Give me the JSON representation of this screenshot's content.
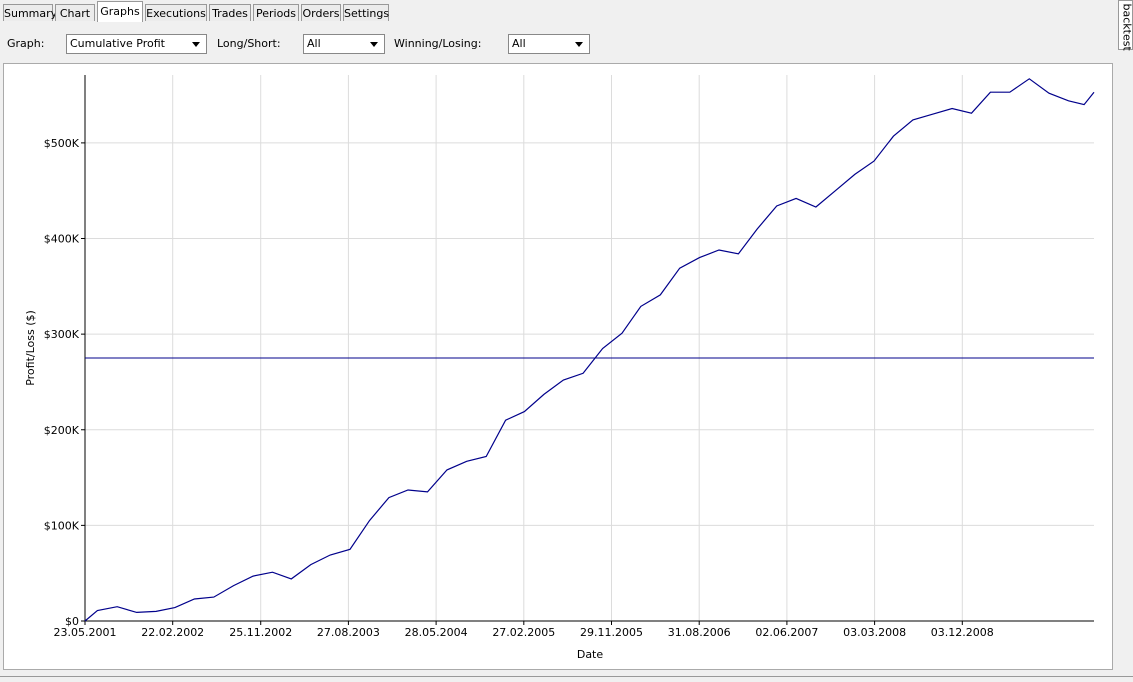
{
  "tabs": [
    "Summary",
    "Chart",
    "Graphs",
    "Executions",
    "Trades",
    "Periods",
    "Orders",
    "Settings"
  ],
  "active_tab": "Graphs",
  "side_tab": "backtest",
  "filters": [
    {
      "label": "Graph:",
      "value": "Cumulative Profit"
    },
    {
      "label": "Long/Short:",
      "value": "All"
    },
    {
      "label": "Winning/Losing:",
      "value": "All"
    }
  ],
  "chart_data": {
    "type": "line",
    "x_label": "Date",
    "y_label": "Profit/Loss ($)",
    "x": [
      "2001-05-23",
      "2001-07-01",
      "2001-09-01",
      "2001-11-01",
      "2002-01-01",
      "2002-03-01",
      "2002-05-01",
      "2002-07-01",
      "2002-09-01",
      "2002-11-01",
      "2003-01-01",
      "2003-03-01",
      "2003-05-01",
      "2003-07-01",
      "2003-09-01",
      "2003-11-01",
      "2004-01-01",
      "2004-03-01",
      "2004-05-01",
      "2004-07-01",
      "2004-09-01",
      "2004-11-01",
      "2005-01-01",
      "2005-03-01",
      "2005-05-01",
      "2005-07-01",
      "2005-09-01",
      "2005-11-01",
      "2006-01-01",
      "2006-03-01",
      "2006-05-01",
      "2006-07-01",
      "2006-09-01",
      "2006-11-01",
      "2007-01-01",
      "2007-03-01",
      "2007-05-01",
      "2007-07-01",
      "2007-09-01",
      "2007-11-01",
      "2008-01-01",
      "2008-03-01",
      "2008-05-01",
      "2008-07-01",
      "2008-09-01",
      "2008-11-01",
      "2009-01-01",
      "2009-03-01",
      "2009-05-01",
      "2009-07-01",
      "2009-09-01",
      "2009-11-01",
      "2009-12-20",
      "2010-01-20"
    ],
    "series": [
      {
        "color": "#00008b",
        "values": [
          0,
          11000,
          15000,
          9000,
          10000,
          14000,
          23000,
          25000,
          37000,
          47000,
          51000,
          44000,
          59000,
          69000,
          75000,
          105000,
          129000,
          137000,
          135000,
          158000,
          167000,
          172000,
          210000,
          219000,
          237000,
          252000,
          259000,
          285000,
          301000,
          329000,
          341000,
          369000,
          380000,
          388000,
          384000,
          410000,
          434000,
          442000,
          433000,
          450000,
          467000,
          481000,
          507000,
          524000,
          530000,
          536000,
          531000,
          553000,
          553000,
          567000,
          552000,
          544000,
          540000,
          553000
        ]
      }
    ],
    "reference_line": 275000,
    "xlim": [
      "2001-05-23",
      "2010-01-20"
    ],
    "xticks": [
      {
        "value": "2001-05-23",
        "label": "23.05.2001"
      },
      {
        "value": "2002-02-22",
        "label": "22.02.2002"
      },
      {
        "value": "2002-11-25",
        "label": "25.11.2002"
      },
      {
        "value": "2003-08-27",
        "label": "27.08.2003"
      },
      {
        "value": "2004-05-28",
        "label": "28.05.2004"
      },
      {
        "value": "2005-02-27",
        "label": "27.02.2005"
      },
      {
        "value": "2005-11-29",
        "label": "29.11.2005"
      },
      {
        "value": "2006-08-31",
        "label": "31.08.2006"
      },
      {
        "value": "2007-06-02",
        "label": "02.06.2007"
      },
      {
        "value": "2008-03-03",
        "label": "03.03.2008"
      },
      {
        "value": "2008-12-03",
        "label": "03.12.2008"
      }
    ],
    "ylim": [
      0,
      571000
    ],
    "yticks": [
      {
        "value": 0,
        "label": "$0"
      },
      {
        "value": 100000,
        "label": "$100K"
      },
      {
        "value": 200000,
        "label": "$200K"
      },
      {
        "value": 300000,
        "label": "$300K"
      },
      {
        "value": 400000,
        "label": "$400K"
      },
      {
        "value": 500000,
        "label": "$500K"
      }
    ],
    "grid": true
  }
}
